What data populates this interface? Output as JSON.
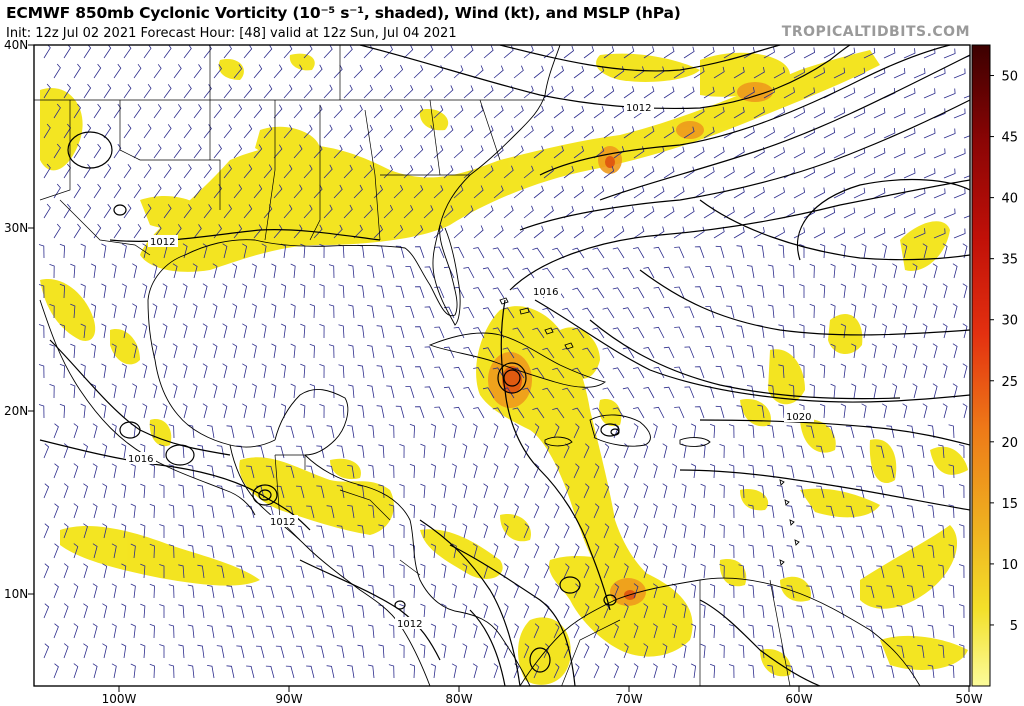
{
  "header": {
    "title": "ECMWF 850mb Cyclonic Vorticity (10⁻⁵ s⁻¹, shaded), Wind (kt), and MSLP (hPa)",
    "subtitle": "Init: 12z Jul 02 2021   Forecast Hour: [48]   valid at 12z Sun, Jul 04 2021",
    "brand": "TROPICALTIDBITS.COM"
  },
  "axes": {
    "lat_labels": [
      "40N",
      "30N",
      "20N",
      "10N"
    ],
    "lon_labels": [
      "100W",
      "90W",
      "80W",
      "70W",
      "60W",
      "50W"
    ]
  },
  "colorbar": {
    "ticks": [
      "50",
      "45",
      "40",
      "35",
      "30",
      "25",
      "20",
      "15",
      "10",
      "5"
    ],
    "colors": [
      "#fbfb9a",
      "#f5ee5a",
      "#f2d82a",
      "#efbd22",
      "#ef9c1c",
      "#ee7a18",
      "#ec5516",
      "#e33010",
      "#d11a0c",
      "#b80e08",
      "#9c0606",
      "#7c0404",
      "#5a0202",
      "#3c0000"
    ]
  },
  "isobar_labels": [
    "1012",
    "1012",
    "1016",
    "1012",
    "1012",
    "1016",
    "1020"
  ],
  "style": {
    "land_outline": "#000000",
    "barb_color": "#2c2c8c",
    "shade_color": "#f2e20a",
    "max_color": "#e05a10"
  }
}
